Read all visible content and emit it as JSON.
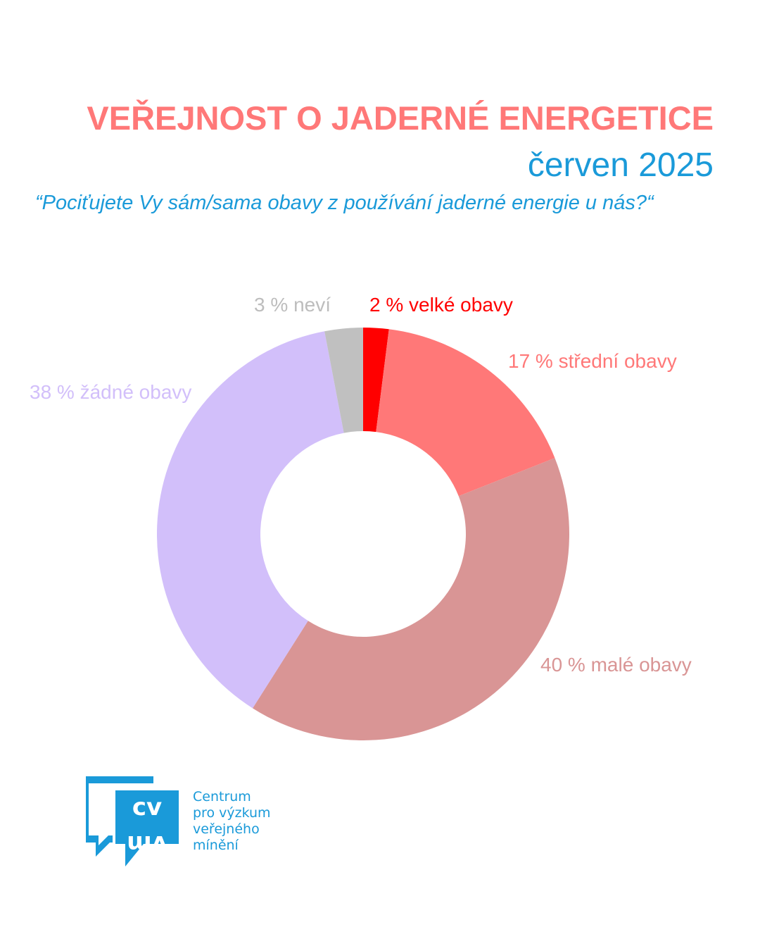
{
  "header": {
    "title": "VEŘEJNOST O JADERNÉ ENERGETICE",
    "subtitle": "červen 2025",
    "question": "“Pociťujete Vy sám/sama obavy z používání jaderné energie u nás?“"
  },
  "chart_data": {
    "type": "pie",
    "donut": true,
    "legend": "none",
    "slices": [
      {
        "name": "velké obavy",
        "value": 2,
        "label": "2 % velké obavy",
        "color": "#ff0000",
        "label_color": "#ff0000"
      },
      {
        "name": "střední obavy",
        "value": 17,
        "label": "17 % střední obavy",
        "color": "#ff7878",
        "label_color": "#ff7878"
      },
      {
        "name": "malé obavy",
        "value": 40,
        "label": "40 % malé obavy",
        "color": "#d99595",
        "label_color": "#d99595"
      },
      {
        "name": "žádné obavy",
        "value": 38,
        "label": "38 % žádné obavy",
        "color": "#d2bffa",
        "label_color": "#d2bffa"
      },
      {
        "name": "neví",
        "value": 3,
        "label": "3 % neví",
        "color": "#c0c0c0",
        "label_color": "#bdbdbd"
      }
    ]
  },
  "logo": {
    "mark_text": "cvvm",
    "lines": [
      "Centrum",
      "pro výzkum",
      "veřejného",
      "mínění"
    ],
    "color": "#1a9ad9"
  }
}
